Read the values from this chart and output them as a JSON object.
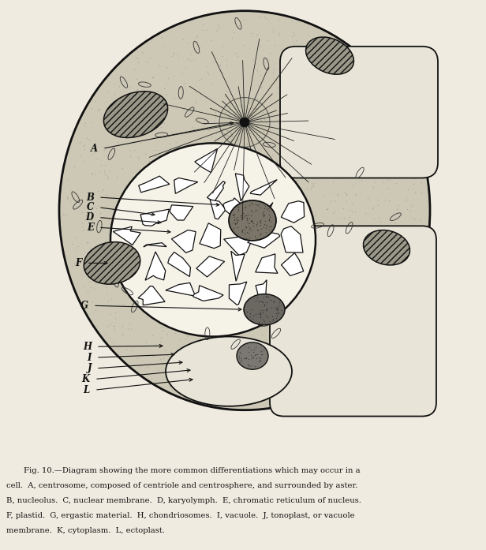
{
  "bg_color": "#f0ebe0",
  "cell_fill": "#ccc8b5",
  "cell_edge": "#111111",
  "vacuole_fill": "#e8e5d8",
  "vacuole_edge": "#111111",
  "nucleus_fill": "#f5f2e8",
  "nucleus_edge": "#111111",
  "nucleolus_fill": "#7a7568",
  "plastid_fill": "#9a9888",
  "plastid_edge": "#111111",
  "erg_fill": "#7a7568",
  "erg_edge": "#111111",
  "line_color": "#111111",
  "label_color": "#111111",
  "caption_lines": [
    "Fig. 10.—Diagram showing the more common differentiations which may occur in a",
    "cell.  A, centrosome, composed of centriole and centrosphere, and surrounded by aster.",
    "B, nucleolus.  C, nuclear membrane.  D, karyolymph.  E, chromatic reticulum of nucleus.",
    "F, plastid.  G, ergastic material.  H, chondriosomes.  I, vacuole.  J, tonoplast, or vacuole",
    "membrane.  K, cytoplasm.  L, ectoplast."
  ]
}
